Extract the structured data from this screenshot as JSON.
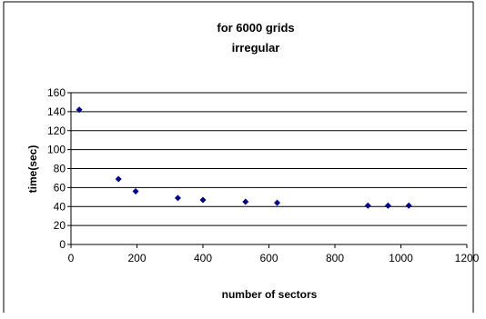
{
  "chart_data": {
    "type": "scatter",
    "title": "for 6000 grids",
    "subtitle": "irregular",
    "xlabel": "number of sectors",
    "ylabel": "time(sec)",
    "xlim": [
      0,
      1200
    ],
    "ylim": [
      0,
      160
    ],
    "x_ticks": [
      0,
      200,
      400,
      600,
      800,
      1000,
      1200
    ],
    "y_ticks": [
      0,
      20,
      40,
      60,
      80,
      100,
      120,
      140,
      160
    ],
    "grid": "horizontal",
    "legend": "none",
    "marker_color": "#000080",
    "points": [
      {
        "x": 25,
        "y": 142
      },
      {
        "x": 144,
        "y": 69
      },
      {
        "x": 196,
        "y": 56
      },
      {
        "x": 324,
        "y": 49
      },
      {
        "x": 400,
        "y": 47
      },
      {
        "x": 529,
        "y": 45
      },
      {
        "x": 625,
        "y": 44
      },
      {
        "x": 900,
        "y": 41
      },
      {
        "x": 961,
        "y": 41
      },
      {
        "x": 1024,
        "y": 41
      }
    ]
  }
}
